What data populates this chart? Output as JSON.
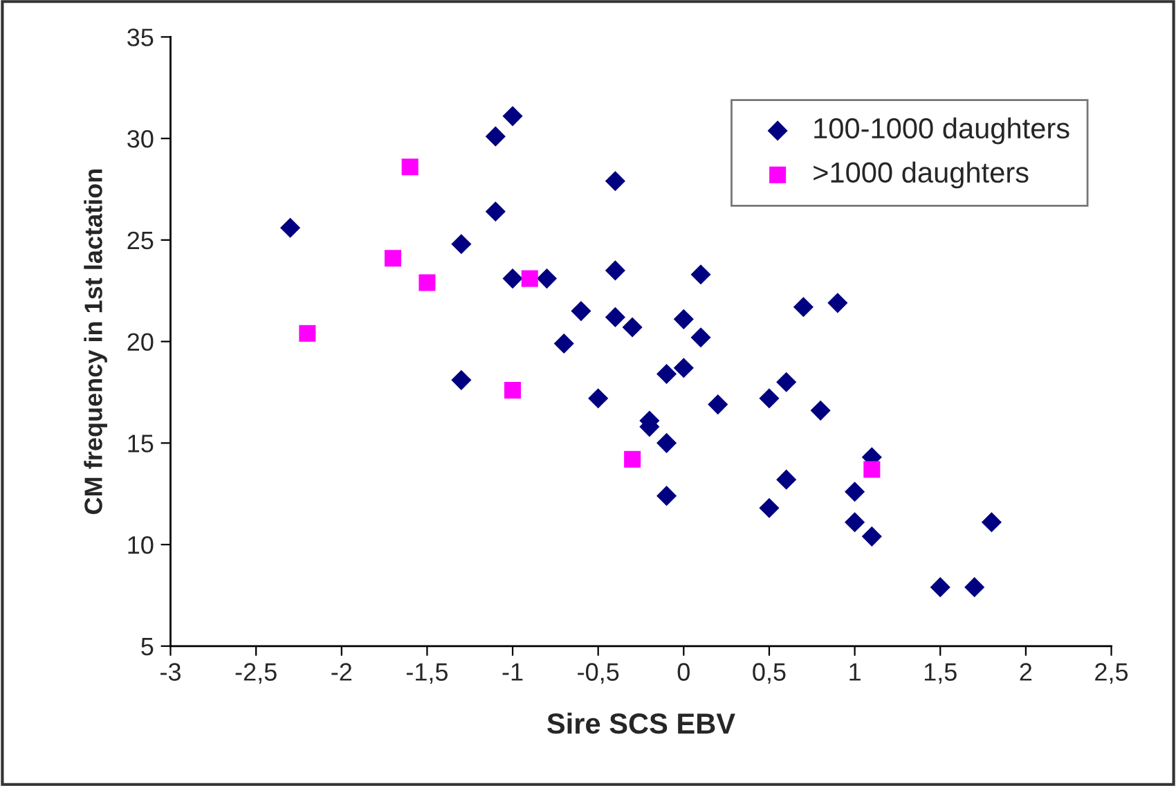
{
  "chart_data": {
    "type": "scatter",
    "xlabel": "Sire SCS EBV",
    "ylabel": "CM frequency in 1st lactation",
    "xlim": [
      -3,
      2.5
    ],
    "ylim": [
      5,
      35
    ],
    "xticks": [
      -3,
      {
        "value": -2.5,
        "label": "-2,5"
      },
      -2,
      {
        "value": -1.5,
        "label": "-1,5"
      },
      -1,
      {
        "value": -0.5,
        "label": "-0,5"
      },
      0,
      {
        "value": 0.5,
        "label": "0,5"
      },
      1,
      {
        "value": 1.5,
        "label": "1,5"
      },
      2,
      {
        "value": 2.5,
        "label": "2,5"
      }
    ],
    "yticks": [
      5,
      10,
      15,
      20,
      25,
      30,
      35
    ],
    "grid": false,
    "legend": "top right",
    "series": [
      {
        "name": "100-1000 daughters",
        "color": "#000080",
        "marker": "diamond",
        "x": [
          -2.3,
          -1.1,
          -1.0,
          -1.1,
          -1.3,
          -1.0,
          -0.8,
          -0.4,
          -0.4,
          -0.6,
          -0.4,
          -0.3,
          -0.7,
          -1.3,
          -0.5,
          -0.2,
          -0.2,
          -0.1,
          -0.1,
          -0.1,
          0,
          0,
          0.1,
          0.1,
          0.2,
          0.5,
          0.6,
          0.7,
          0.9,
          0.8,
          0.6,
          0.5,
          1.0,
          1.0,
          1.1,
          1.1,
          1.5,
          1.7,
          1.8
        ],
        "values": [
          25.6,
          30.1,
          31.1,
          26.4,
          24.8,
          23.1,
          23.1,
          27.9,
          23.5,
          21.5,
          21.2,
          20.7,
          19.9,
          18.1,
          17.2,
          16.1,
          15.8,
          15.0,
          12.4,
          18.4,
          18.7,
          21.1,
          23.3,
          20.2,
          16.9,
          17.2,
          18.0,
          21.7,
          21.9,
          16.6,
          13.2,
          11.8,
          12.6,
          11.1,
          10.4,
          14.3,
          7.9,
          7.9,
          11.1
        ]
      },
      {
        "name": ">1000 daughters",
        "color": "#ff00ff",
        "marker": "square",
        "x": [
          -2.2,
          -1.7,
          -1.6,
          -1.5,
          -0.9,
          -1.0,
          -0.3,
          1.1
        ],
        "values": [
          20.4,
          24.1,
          28.6,
          22.9,
          23.1,
          17.6,
          14.2,
          13.7
        ]
      }
    ]
  }
}
